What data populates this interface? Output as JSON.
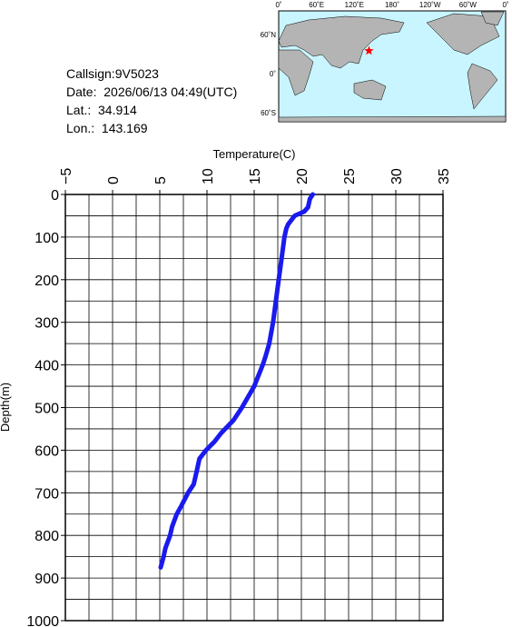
{
  "info": {
    "callsign": "Callsign:9V5023",
    "date": "Date:  2026/06/13 04:49(UTC)",
    "lat": "Lat.:  34.914",
    "lon": "Lon.:  143.169"
  },
  "map": {
    "lon_labels": [
      "0˚",
      "60˚E",
      "120˚E",
      "180˚",
      "120˚W",
      "60˚W",
      "0˚"
    ],
    "lat_labels": [
      "60˚N",
      "0˚",
      "60˚S"
    ],
    "position": {
      "lat": 34.914,
      "lon": 143.169
    },
    "marker_color": "#ff0000"
  },
  "chart_data": {
    "type": "line",
    "xlabel": "Temperature(C)",
    "ylabel": "Depth(m)",
    "xlim": [
      -5,
      35
    ],
    "xticks": [
      {
        "value": -5,
        "label": "−5"
      },
      0,
      5,
      10,
      15,
      20,
      25,
      30,
      35
    ],
    "minor_xticks": [
      -2.5,
      2.5,
      7.5,
      12.5,
      17.5,
      22.5,
      27.5,
      32.5
    ],
    "ylim": [
      0,
      1000
    ],
    "y_inverted": true,
    "yticks": [
      0,
      100,
      200,
      300,
      400,
      500,
      600,
      700,
      800,
      900,
      1000
    ],
    "minor_yticks": [
      50,
      150,
      250,
      350,
      450,
      550,
      650,
      750,
      850,
      950
    ],
    "grid": true,
    "series": [
      {
        "color": "#1a1aee",
        "x": [
          21.2,
          20.9,
          20.7,
          20.3,
          19.3,
          18.6,
          18.4,
          18.2,
          17.9,
          17.6,
          17.3,
          17.0,
          16.6,
          16.2,
          15.9,
          15.0,
          13.7,
          12.8,
          11.5,
          10.8,
          9.9,
          9.2,
          8.9,
          8.6,
          8.0,
          7.3,
          6.8,
          6.3,
          6.1,
          5.6,
          5.4,
          5.1
        ],
        "values": [
          0,
          10,
          30,
          40,
          50,
          70,
          80,
          100,
          150,
          200,
          250,
          300,
          350,
          380,
          400,
          450,
          500,
          530,
          560,
          580,
          600,
          620,
          650,
          680,
          700,
          730,
          750,
          780,
          800,
          830,
          850,
          875
        ]
      }
    ]
  }
}
